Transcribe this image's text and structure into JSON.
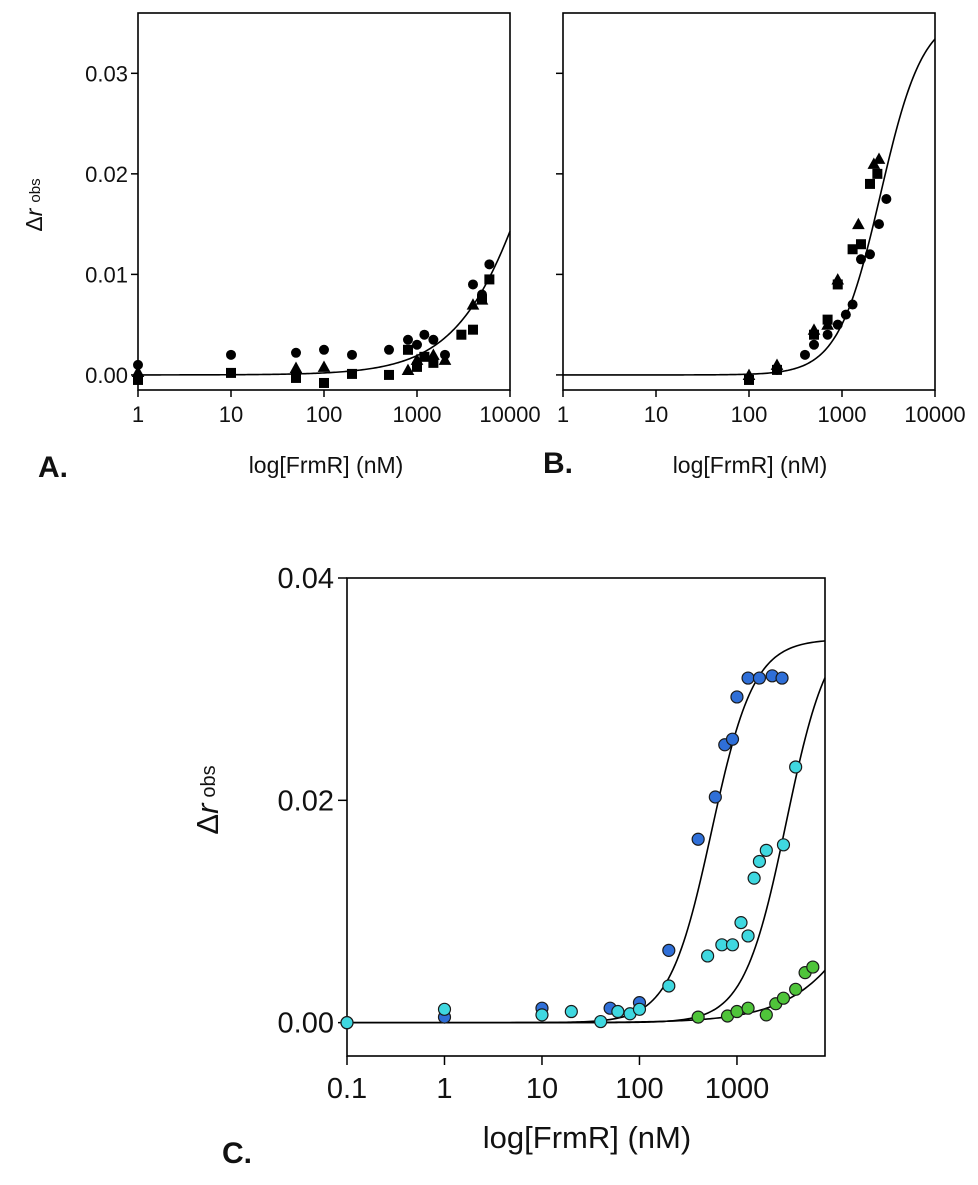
{
  "chart_data": [
    {
      "id": "A",
      "type": "scatter",
      "panel_label": "A.",
      "xlabel": "log[FrmR] (nM)",
      "ylabel": {
        "delta": "Δ",
        "var": "r",
        "sub": "obs"
      },
      "x_scale": "log",
      "xlim": [
        1,
        10000
      ],
      "ylim": [
        -0.0015,
        0.036
      ],
      "x_ticks": [
        1,
        10,
        100,
        1000,
        10000
      ],
      "x_tick_labels": [
        "1",
        "10",
        "100",
        "1000",
        "10000"
      ],
      "y_ticks": [
        0.0,
        0.01,
        0.02,
        0.03
      ],
      "y_tick_labels": [
        "0.00",
        "0.01",
        "0.02",
        "0.03"
      ],
      "grid": false,
      "legend": "none",
      "fit": {
        "ymax": 0.05,
        "kd": 25000,
        "n": 1.0
      },
      "series": [
        {
          "marker": "circle",
          "color": "#000000",
          "points": [
            [
              1,
              0.001
            ],
            [
              10,
              0.002
            ],
            [
              50,
              0.0022
            ],
            [
              100,
              0.0025
            ],
            [
              200,
              0.002
            ],
            [
              500,
              0.0025
            ],
            [
              800,
              0.0035
            ],
            [
              1000,
              0.003
            ],
            [
              1200,
              0.004
            ],
            [
              1500,
              0.0035
            ],
            [
              2000,
              0.002
            ],
            [
              4000,
              0.009
            ],
            [
              5000,
              0.008
            ],
            [
              6000,
              0.011
            ]
          ]
        },
        {
          "marker": "square",
          "color": "#000000",
          "points": [
            [
              1,
              -0.0005
            ],
            [
              10,
              0.0002
            ],
            [
              50,
              -0.0003
            ],
            [
              100,
              -0.0008
            ],
            [
              200,
              0.0001
            ],
            [
              500,
              0
            ],
            [
              800,
              0.0025
            ],
            [
              1000,
              0.0008
            ],
            [
              1200,
              0.0018
            ],
            [
              1500,
              0.0012
            ],
            [
              3000,
              0.004
            ],
            [
              4000,
              0.0045
            ],
            [
              5000,
              0.0075
            ],
            [
              6000,
              0.0095
            ]
          ]
        },
        {
          "marker": "triangle",
          "color": "#000000",
          "points": [
            [
              1,
              0.0003
            ],
            [
              50,
              0.0007
            ],
            [
              100,
              0.0008
            ],
            [
              800,
              0.0005
            ],
            [
              1000,
              0.0015
            ],
            [
              1500,
              0.002
            ],
            [
              2000,
              0.0015
            ],
            [
              4000,
              0.007
            ],
            [
              5000,
              0.0075
            ]
          ]
        }
      ]
    },
    {
      "id": "B",
      "type": "scatter",
      "panel_label": "B.",
      "xlabel": "log[FrmR] (nM)",
      "ylabel": null,
      "x_scale": "log",
      "xlim": [
        1,
        10000
      ],
      "ylim": [
        -0.0015,
        0.036
      ],
      "x_ticks": [
        1,
        10,
        100,
        1000,
        10000
      ],
      "x_tick_labels": [
        "1",
        "10",
        "100",
        "1000",
        "10000"
      ],
      "y_ticks": [
        0.0,
        0.01,
        0.02,
        0.03
      ],
      "y_tick_labels": [],
      "grid": false,
      "legend": "none",
      "fit": {
        "ymax": 0.036,
        "kd": 2600,
        "n": 1.9
      },
      "series": [
        {
          "marker": "circle",
          "color": "#000000",
          "points": [
            [
              200,
              0.0005
            ],
            [
              400,
              0.002
            ],
            [
              500,
              0.003
            ],
            [
              700,
              0.004
            ],
            [
              900,
              0.005
            ],
            [
              1100,
              0.006
            ],
            [
              1300,
              0.007
            ],
            [
              1600,
              0.0115
            ],
            [
              2000,
              0.012
            ],
            [
              2500,
              0.015
            ],
            [
              3000,
              0.0175
            ]
          ]
        },
        {
          "marker": "square",
          "color": "#000000",
          "points": [
            [
              100,
              -0.0005
            ],
            [
              200,
              0.0005
            ],
            [
              500,
              0.004
            ],
            [
              700,
              0.0055
            ],
            [
              900,
              0.009
            ],
            [
              1300,
              0.0125
            ],
            [
              1600,
              0.013
            ],
            [
              2000,
              0.019
            ],
            [
              2400,
              0.02
            ]
          ]
        },
        {
          "marker": "triangle",
          "color": "#000000",
          "points": [
            [
              100,
              0
            ],
            [
              200,
              0.001
            ],
            [
              500,
              0.0045
            ],
            [
              700,
              0.005
            ],
            [
              900,
              0.0095
            ],
            [
              1500,
              0.015
            ],
            [
              2200,
              0.021
            ],
            [
              2500,
              0.0215
            ]
          ]
        }
      ]
    },
    {
      "id": "C",
      "type": "scatter",
      "panel_label": "C.",
      "xlabel": "log[FrmR] (nM)",
      "ylabel": {
        "delta": "Δ",
        "var": "r",
        "sub": "obs"
      },
      "x_scale": "log",
      "xlim": [
        0.1,
        8000
      ],
      "ylim": [
        -0.003,
        0.04
      ],
      "x_ticks": [
        0.1,
        1,
        10,
        100,
        1000
      ],
      "x_tick_labels": [
        "0.1",
        "1",
        "10",
        "100",
        "1000"
      ],
      "y_ticks": [
        0.0,
        0.02,
        0.04
      ],
      "y_tick_labels": [
        "0.00",
        "0.02",
        "0.04"
      ],
      "grid": false,
      "legend": "none",
      "series": [
        {
          "marker": "circle",
          "color": "#2f6fd8",
          "fit": {
            "ymax": 0.0345,
            "kd": 550,
            "n": 2.0
          },
          "points": [
            [
              0.1,
              0
            ],
            [
              1,
              0.0005
            ],
            [
              10,
              0.0013
            ],
            [
              50,
              0.0013
            ],
            [
              100,
              0.0018
            ],
            [
              200,
              0.0065
            ],
            [
              400,
              0.0165
            ],
            [
              600,
              0.0203
            ],
            [
              750,
              0.025
            ],
            [
              900,
              0.0255
            ],
            [
              1000,
              0.0293
            ],
            [
              1300,
              0.031
            ],
            [
              1700,
              0.031
            ],
            [
              2300,
              0.0312
            ],
            [
              2900,
              0.031
            ]
          ]
        },
        {
          "marker": "circle",
          "color": "#3fd8e0",
          "fit": {
            "ymax": 0.036,
            "kd": 3200,
            "n": 2.0
          },
          "points": [
            [
              0.1,
              0
            ],
            [
              1,
              0.0012
            ],
            [
              10,
              0.0007
            ],
            [
              20,
              0.001
            ],
            [
              40,
              0.0001
            ],
            [
              60,
              0.001
            ],
            [
              80,
              0.0008
            ],
            [
              100,
              0.0012
            ],
            [
              200,
              0.0033
            ],
            [
              500,
              0.006
            ],
            [
              700,
              0.007
            ],
            [
              900,
              0.007
            ],
            [
              1100,
              0.009
            ],
            [
              1300,
              0.0078
            ],
            [
              1500,
              0.013
            ],
            [
              1700,
              0.0145
            ],
            [
              2000,
              0.0155
            ],
            [
              3000,
              0.016
            ],
            [
              4000,
              0.023
            ]
          ]
        },
        {
          "marker": "circle",
          "color": "#4fc43a",
          "fit": {
            "ymax": 0.04,
            "kd": 60000,
            "n": 1.0
          },
          "points": [
            [
              400,
              0.0005
            ],
            [
              800,
              0.0006
            ],
            [
              1000,
              0.001
            ],
            [
              1300,
              0.0013
            ],
            [
              2000,
              0.0007
            ],
            [
              2500,
              0.0017
            ],
            [
              3000,
              0.0022
            ],
            [
              4000,
              0.003
            ],
            [
              5000,
              0.0045
            ],
            [
              6000,
              0.005
            ]
          ]
        }
      ]
    }
  ]
}
